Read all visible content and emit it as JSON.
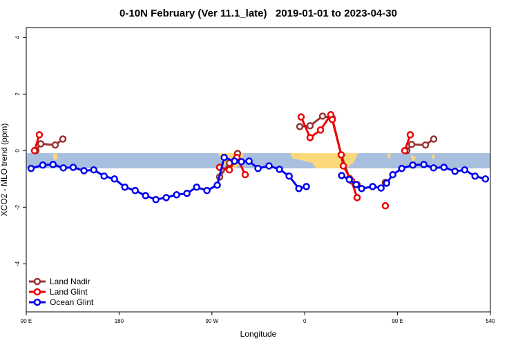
{
  "chart_data": {
    "type": "line",
    "title": "0-10N February (Ver 11.1_late)   2019-01-01 to 2023-04-30",
    "x_label": "Longitude",
    "y_label": "XCO2 - MLO trend (ppm)",
    "xlim": [
      90,
      540
    ],
    "ylim": [
      -5.7,
      4.35
    ],
    "xticks": [
      {
        "value": 90,
        "label": "90 E"
      },
      180,
      {
        "value": 270,
        "label": "90 W"
      },
      {
        "value": 360,
        "label": "0"
      },
      {
        "value": 450,
        "label": "90 E"
      },
      540
    ],
    "yticks": [
      -4,
      -2,
      0,
      2,
      4
    ],
    "legend": "bottom-left",
    "series": [
      {
        "name": "Land Nadir",
        "color": "#993333",
        "x": [
          99.4,
          104.1,
          118.1,
          125.5,
          null,
          277.5,
          286.9,
          294.9,
          null,
          355.2,
          365.2,
          377.3,
          386.7,
          395.4,
          403.4,
          410.8,
          null,
          438.2,
          null,
          459,
          463.7,
          477.1,
          485.1
        ],
        "values": [
          0,
          0.24,
          0.2,
          0.41,
          null,
          -0.93,
          -0.44,
          -0.1,
          null,
          0.85,
          0.88,
          1.22,
          1.15,
          -0.15,
          -0.98,
          -1.2,
          null,
          -1.12,
          null,
          0,
          0.22,
          0.2,
          0.41
        ]
      },
      {
        "name": "Land Glint",
        "color": "#ee0000",
        "x": [
          98,
          102.7,
          null,
          277.5,
          286.9,
          294.3,
          302.3,
          null,
          356.5,
          365.2,
          375.3,
          385.3,
          386.7,
          395.4,
          397.4,
          405.4,
          410.8,
          null,
          438.2,
          null,
          457,
          462.3
        ],
        "values": [
          0,
          0.56,
          null,
          -0.59,
          -0.68,
          -0.24,
          -0.85,
          null,
          1.19,
          0.46,
          0.73,
          1.27,
          1.1,
          -0.15,
          -0.54,
          -1.07,
          -1.66,
          null,
          -1.95,
          null,
          0,
          0.56
        ]
      },
      {
        "name": "Ocean Glint",
        "color": "#0000ee",
        "x": [
          94.7,
          106,
          116,
          126,
          135.5,
          146,
          155.5,
          165.5,
          175.5,
          185.6,
          195.6,
          205.7,
          215.7,
          225.7,
          235.8,
          245.8,
          255.2,
          265.2,
          275.2,
          281.9,
          292,
          298.6,
          306,
          314.7,
          325.4,
          335.5,
          344.9,
          354.3,
          361.6,
          null,
          395.8,
          403.2,
          409.9,
          415.2,
          425.9,
          434,
          439.4,
          445.4,
          454.1,
          464.8,
          475.5,
          484.9,
          495,
          505.7,
          515.1,
          525.1,
          535.2
        ],
        "values": [
          -0.63,
          -0.51,
          -0.49,
          -0.61,
          -0.59,
          -0.71,
          -0.68,
          -0.9,
          -1.0,
          -1.29,
          -1.41,
          -1.59,
          -1.73,
          -1.66,
          -1.56,
          -1.51,
          -1.29,
          -1.41,
          -1.22,
          -0.24,
          -0.37,
          -0.39,
          -0.37,
          -0.63,
          -0.54,
          -0.66,
          -0.9,
          -1.34,
          -1.27,
          null,
          -0.88,
          -1.02,
          -1.2,
          -1.34,
          -1.27,
          -1.32,
          -1.15,
          -0.85,
          -0.63,
          -0.51,
          -0.49,
          -0.61,
          -0.59,
          -0.73,
          -0.68,
          -0.9,
          -1.0
        ]
      }
    ]
  }
}
